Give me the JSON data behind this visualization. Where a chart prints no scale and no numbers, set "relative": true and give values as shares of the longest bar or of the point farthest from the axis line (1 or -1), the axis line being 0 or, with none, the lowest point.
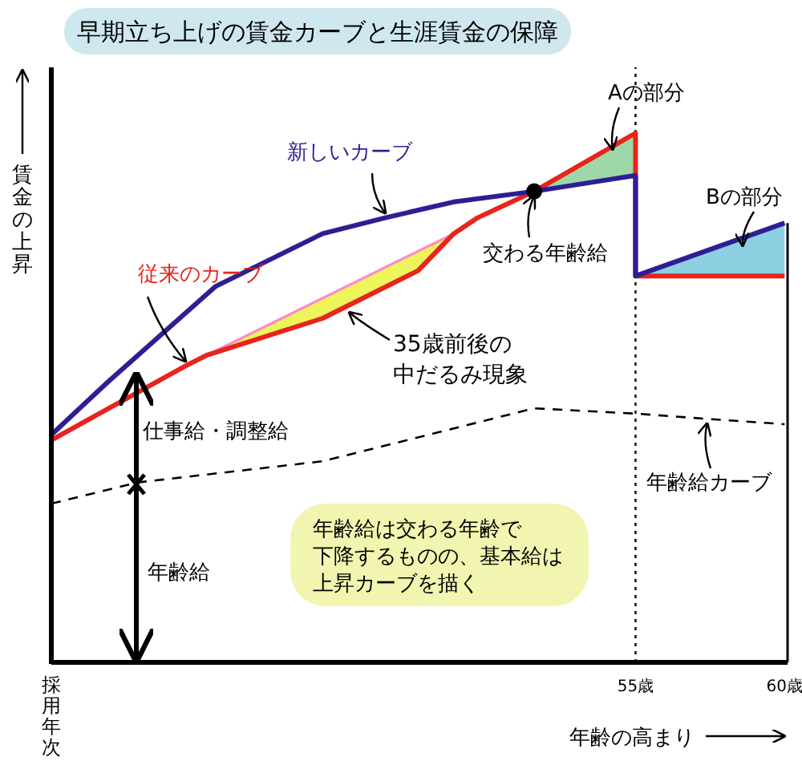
{
  "chart_data": {
    "type": "line",
    "title": "早期立ち上げの賃金カーブと生涯賃金の保障",
    "ylabel": "賃金の上昇",
    "xlabel": "年齢の高まり",
    "relative": true,
    "xlim": [
      35.4,
      60.1
    ],
    "xticks": [
      {
        "value": 35.4,
        "label": "採用年次"
      },
      {
        "value": 55,
        "label": "55歳"
      },
      {
        "value": 60,
        "label": "60歳"
      }
    ],
    "marker": "none",
    "series": [
      {
        "color": "#ff88cc",
        "x": [
          40.6,
          48.9
        ],
        "values": [
          0.58,
          0.81
        ]
      },
      {
        "color": "#e8241c",
        "x": [
          35.4,
          39.9,
          40.6,
          44.5,
          47.7,
          48.9,
          49.7,
          51.6,
          55,
          55,
          60
        ],
        "values": [
          0.42,
          0.56,
          0.58,
          0.65,
          0.74,
          0.81,
          0.84,
          0.89,
          1.0,
          0.73,
          0.73
        ]
      },
      {
        "color": "#2e1e96",
        "x": [
          35.4,
          37.3,
          40.9,
          44.5,
          46.6,
          48.9,
          51.6,
          55,
          55,
          60
        ],
        "values": [
          0.43,
          0.53,
          0.71,
          0.81,
          0.84,
          0.87,
          0.89,
          0.92,
          0.73,
          0.83
        ]
      },
      {
        "color": "#000000",
        "line_style": "dashed",
        "x": [
          35.4,
          38.3,
          44.5,
          51.6,
          55,
          57.4,
          60
        ],
        "values": [
          0.3,
          0.34,
          0.38,
          0.48,
          0.47,
          0.46,
          0.45
        ]
      },
      {
        "type": "scatter",
        "color": "#000000",
        "marker": "circle",
        "x": [
          51.6
        ],
        "values": [
          0.89
        ]
      }
    ],
    "ref_lines": [
      {
        "axis": "x",
        "value": 55,
        "line_style": "dotted",
        "color": "#000000"
      }
    ],
    "annotations": [
      {
        "text": "新しいカーブ",
        "x": 46.6,
        "y": 0.84
      },
      {
        "text": "従来のカーブ",
        "x": 39.9,
        "y": 0.56
      },
      {
        "text": "35歳前後の中だるみ現象",
        "x": 45.4,
        "y": 0.67
      },
      {
        "text": "交わる年齢給",
        "x": 51.6,
        "y": 0.89
      },
      "Aの部分",
      "Bの部分",
      {
        "text": "年齢給カーブ",
        "x": 57.4,
        "y": 0.46
      },
      "仕事給・調整給",
      "年齢給",
      "年齢給は交わる年齢で下降するものの、基本給は上昇カーブを描く"
    ]
  }
}
